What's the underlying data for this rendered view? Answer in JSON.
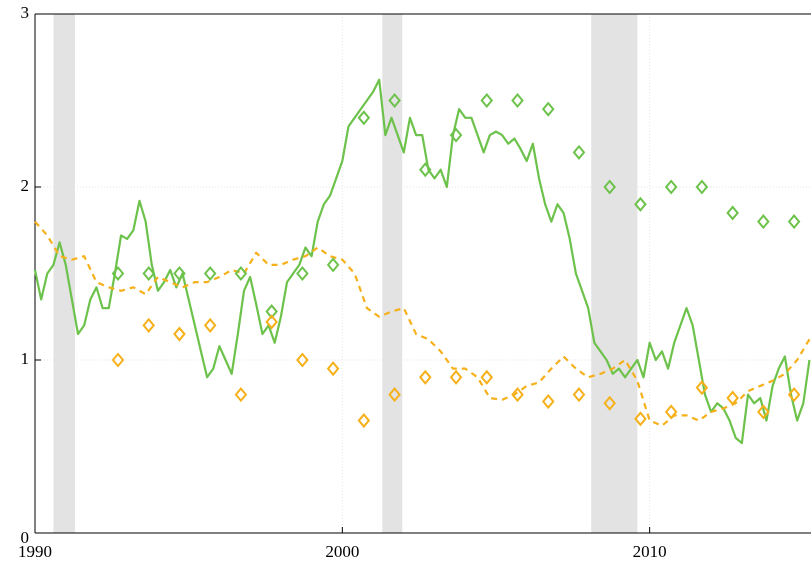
{
  "chart_data": {
    "type": "line",
    "xlim": [
      1990,
      2015.25
    ],
    "ylim": [
      0,
      3
    ],
    "xticks": [
      1990,
      2000,
      2010
    ],
    "yticks": [
      0,
      1,
      2,
      3
    ],
    "grid": true,
    "shaded_regions": [
      [
        1990.6,
        1991.3
      ],
      [
        2001.3,
        2001.95
      ],
      [
        2008.1,
        2009.6
      ]
    ],
    "shade_color": "#e3e3e3",
    "series": [
      {
        "color": "#6cc24a",
        "line_style": "solid",
        "x": [
          1990.0,
          1990.2,
          1990.4,
          1990.6,
          1990.8,
          1991.0,
          1991.2,
          1991.4,
          1991.6,
          1991.8,
          1992.0,
          1992.2,
          1992.4,
          1992.6,
          1992.8,
          1993.0,
          1993.2,
          1993.4,
          1993.6,
          1993.8,
          1994.0,
          1994.2,
          1994.4,
          1994.6,
          1994.8,
          1995.0,
          1995.2,
          1995.4,
          1995.6,
          1995.8,
          1996.0,
          1996.2,
          1996.4,
          1996.6,
          1996.8,
          1997.0,
          1997.2,
          1997.4,
          1997.6,
          1997.8,
          1998.0,
          1998.2,
          1998.4,
          1998.6,
          1998.8,
          1999.0,
          1999.2,
          1999.4,
          1999.6,
          1999.8,
          2000.0,
          2000.2,
          2000.4,
          2000.6,
          2000.8,
          2001.0,
          2001.2,
          2001.4,
          2001.6,
          2001.8,
          2002.0,
          2002.2,
          2002.4,
          2002.6,
          2002.8,
          2003.0,
          2003.2,
          2003.4,
          2003.6,
          2003.8,
          2004.0,
          2004.2,
          2004.4,
          2004.6,
          2004.8,
          2005.0,
          2005.2,
          2005.4,
          2005.6,
          2005.8,
          2006.0,
          2006.2,
          2006.4,
          2006.6,
          2006.8,
          2007.0,
          2007.2,
          2007.4,
          2007.6,
          2007.8,
          2008.0,
          2008.2,
          2008.4,
          2008.6,
          2008.8,
          2009.0,
          2009.2,
          2009.4,
          2009.6,
          2009.8,
          2010.0,
          2010.2,
          2010.4,
          2010.6,
          2010.8,
          2011.0,
          2011.2,
          2011.4,
          2011.6,
          2011.8,
          2012.0,
          2012.2,
          2012.4,
          2012.6,
          2012.8,
          2013.0,
          2013.2,
          2013.4,
          2013.6,
          2013.8,
          2014.0,
          2014.2,
          2014.4,
          2014.6,
          2014.8,
          2015.0,
          2015.2
        ],
        "values": [
          1.52,
          1.35,
          1.5,
          1.55,
          1.68,
          1.55,
          1.35,
          1.15,
          1.2,
          1.35,
          1.42,
          1.3,
          1.3,
          1.5,
          1.72,
          1.7,
          1.75,
          1.92,
          1.8,
          1.55,
          1.4,
          1.45,
          1.52,
          1.42,
          1.5,
          1.35,
          1.2,
          1.05,
          0.9,
          0.95,
          1.08,
          1.0,
          0.92,
          1.15,
          1.4,
          1.48,
          1.32,
          1.15,
          1.2,
          1.1,
          1.25,
          1.45,
          1.5,
          1.55,
          1.65,
          1.6,
          1.8,
          1.9,
          1.95,
          2.05,
          2.15,
          2.35,
          2.4,
          2.45,
          2.5,
          2.55,
          2.62,
          2.3,
          2.4,
          2.3,
          2.2,
          2.4,
          2.3,
          2.3,
          2.1,
          2.05,
          2.1,
          2.0,
          2.3,
          2.45,
          2.4,
          2.4,
          2.3,
          2.2,
          2.3,
          2.32,
          2.3,
          2.25,
          2.28,
          2.22,
          2.15,
          2.25,
          2.05,
          1.9,
          1.8,
          1.9,
          1.85,
          1.7,
          1.5,
          1.4,
          1.3,
          1.1,
          1.05,
          1.0,
          0.92,
          0.95,
          0.9,
          0.95,
          1.0,
          0.9,
          1.1,
          1.0,
          1.05,
          0.95,
          1.1,
          1.2,
          1.3,
          1.2,
          1.0,
          0.8,
          0.7,
          0.75,
          0.72,
          0.65,
          0.55,
          0.52,
          0.8,
          0.75,
          0.78,
          0.65,
          0.85,
          0.95,
          1.02,
          0.8,
          0.65,
          0.75,
          1.0
        ]
      },
      {
        "color": "#f5b01a",
        "line_style": "dashed",
        "x": [
          1990.0,
          1990.4,
          1990.8,
          1991.2,
          1991.6,
          1992.0,
          1992.4,
          1992.8,
          1993.2,
          1993.6,
          1994.0,
          1994.4,
          1994.8,
          1995.2,
          1995.6,
          1996.0,
          1996.4,
          1996.8,
          1997.2,
          1997.6,
          1998.0,
          1998.4,
          1998.8,
          1999.2,
          1999.6,
          2000.0,
          2000.4,
          2000.8,
          2001.2,
          2001.6,
          2002.0,
          2002.4,
          2002.8,
          2003.2,
          2003.6,
          2004.0,
          2004.4,
          2004.8,
          2005.2,
          2005.6,
          2006.0,
          2006.4,
          2006.8,
          2007.2,
          2007.6,
          2008.0,
          2008.4,
          2008.8,
          2009.2,
          2009.6,
          2010.0,
          2010.4,
          2010.8,
          2011.2,
          2011.6,
          2012.0,
          2012.4,
          2012.8,
          2013.2,
          2013.6,
          2014.0,
          2014.4,
          2014.8,
          2015.2
        ],
        "values": [
          1.8,
          1.72,
          1.6,
          1.58,
          1.6,
          1.45,
          1.42,
          1.4,
          1.42,
          1.38,
          1.48,
          1.45,
          1.42,
          1.45,
          1.45,
          1.48,
          1.52,
          1.5,
          1.62,
          1.55,
          1.55,
          1.58,
          1.6,
          1.65,
          1.6,
          1.58,
          1.5,
          1.3,
          1.25,
          1.28,
          1.3,
          1.15,
          1.12,
          1.05,
          0.95,
          0.95,
          0.9,
          0.78,
          0.77,
          0.8,
          0.85,
          0.87,
          0.95,
          1.02,
          0.95,
          0.9,
          0.92,
          0.95,
          1.0,
          0.88,
          0.65,
          0.62,
          0.68,
          0.68,
          0.65,
          0.7,
          0.72,
          0.75,
          0.82,
          0.85,
          0.88,
          0.92,
          1.0,
          1.12
        ]
      },
      {
        "color": "#6cc24a",
        "marker": "diamond",
        "x": [
          1992.7,
          1993.7,
          1994.7,
          1995.7,
          1996.7,
          1997.7,
          1998.7,
          1999.7,
          2000.7,
          2001.7,
          2002.7,
          2003.7,
          2004.7,
          2005.7,
          2006.7,
          2007.7,
          2008.7,
          2009.7,
          2010.7,
          2011.7,
          2012.7,
          2013.7,
          2014.7
        ],
        "values": [
          1.5,
          1.5,
          1.5,
          1.5,
          1.5,
          1.28,
          1.5,
          1.55,
          2.4,
          2.5,
          2.1,
          2.3,
          2.5,
          2.5,
          2.45,
          2.2,
          2.0,
          1.9,
          2.0,
          2.0,
          1.85,
          1.8,
          1.8
        ]
      },
      {
        "color": "#f5b01a",
        "marker": "diamond",
        "x": [
          1992.7,
          1993.7,
          1994.7,
          1995.7,
          1996.7,
          1997.7,
          1998.7,
          1999.7,
          2000.7,
          2001.7,
          2002.7,
          2003.7,
          2004.7,
          2005.7,
          2006.7,
          2007.7,
          2008.7,
          2009.7,
          2010.7,
          2011.7,
          2012.7,
          2013.7,
          2014.7
        ],
        "values": [
          1.0,
          1.2,
          1.15,
          1.2,
          0.8,
          1.22,
          1.0,
          0.95,
          0.65,
          0.8,
          0.9,
          0.9,
          0.9,
          0.8,
          0.76,
          0.8,
          0.75,
          0.66,
          0.7,
          0.84,
          0.78,
          0.7,
          0.8
        ]
      }
    ]
  }
}
